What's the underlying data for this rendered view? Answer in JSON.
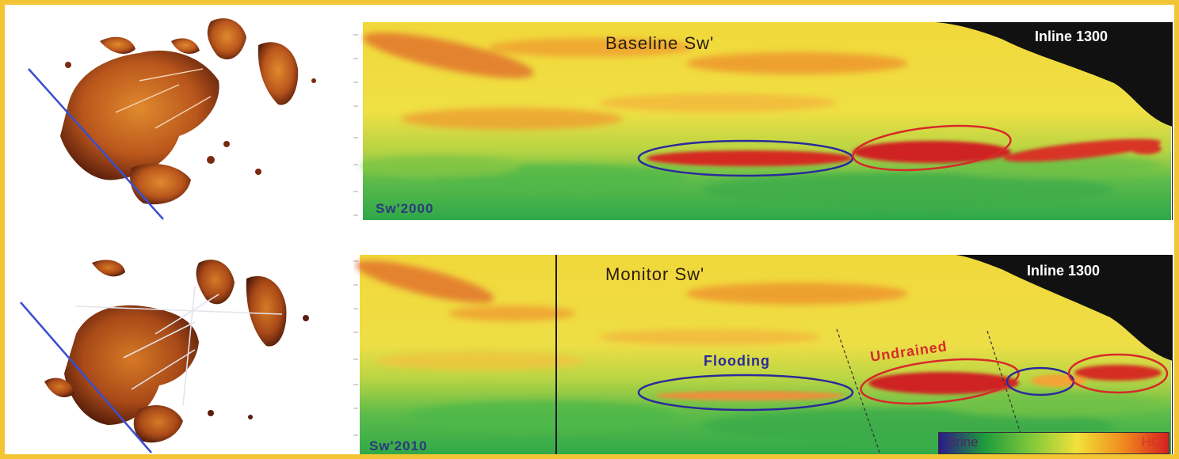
{
  "top_panel": {
    "title": "Baseline Sw'",
    "inline": "Inline 1300",
    "vintage": "Sw'2000"
  },
  "bottom_panel": {
    "title": "Monitor Sw'",
    "inline": "Inline 1300",
    "vintage": "Sw'2010",
    "annotation_flooding": "Flooding",
    "annotation_undrained": "Undrained"
  },
  "colorbar": {
    "left_label": "Brine",
    "right_label": "HC",
    "colors": [
      "#2a1a8c",
      "#1f9c3c",
      "#7fc83a",
      "#f2e13a",
      "#f08c1e",
      "#d42020"
    ]
  },
  "colors": {
    "frame": "#f3c534",
    "flooding_outline": "#2a2a9a",
    "undrained_outline": "#d62a2a",
    "map_patch": "#a8431a"
  }
}
